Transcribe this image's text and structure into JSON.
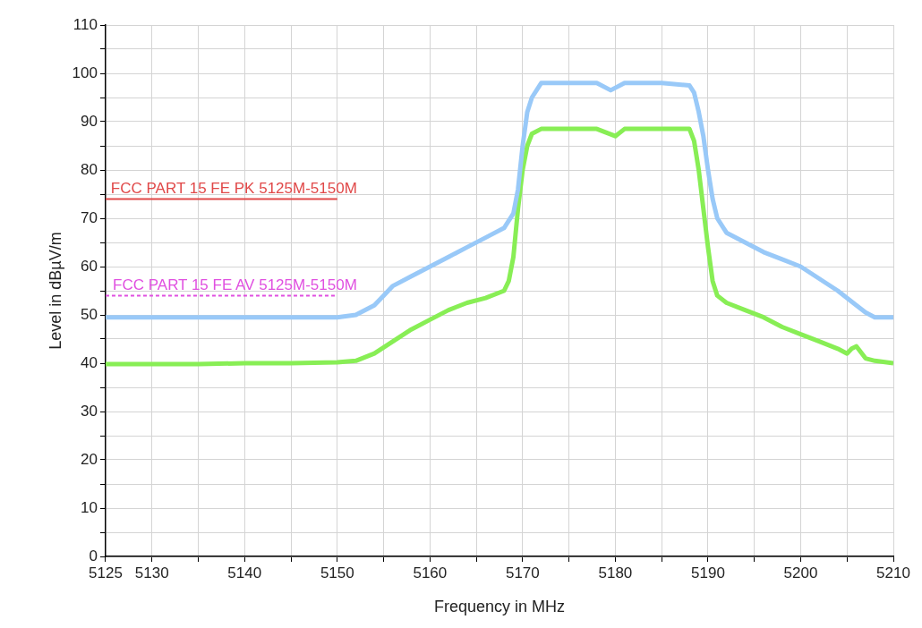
{
  "chart_data": {
    "type": "line",
    "xlabel": "Frequency in MHz",
    "ylabel": "Level in dBµV/m",
    "xlim": [
      5125,
      5210
    ],
    "xticks": [
      5125,
      5130,
      {
        "value": 5135,
        "label": null
      },
      5140,
      {
        "value": 5145,
        "label": null
      },
      5150,
      {
        "value": 5155,
        "label": null
      },
      5160,
      {
        "value": 5165,
        "label": null
      },
      5170,
      {
        "value": 5175,
        "label": null
      },
      5180,
      {
        "value": 5185,
        "label": null
      },
      5190,
      {
        "value": 5195,
        "label": null
      },
      5200,
      {
        "value": 5205,
        "label": null
      },
      5210
    ],
    "ylim": [
      0,
      110
    ],
    "yticks": [
      0,
      {
        "value": 5,
        "label": null
      },
      10,
      {
        "value": 15,
        "label": null
      },
      20,
      {
        "value": 25,
        "label": null
      },
      30,
      {
        "value": 35,
        "label": null
      },
      40,
      {
        "value": 45,
        "label": null
      },
      50,
      {
        "value": 55,
        "label": null
      },
      60,
      {
        "value": 65,
        "label": null
      },
      70,
      {
        "value": 75,
        "label": null
      },
      80,
      {
        "value": 85,
        "label": null
      },
      90,
      {
        "value": 95,
        "label": null
      },
      100,
      {
        "value": 105,
        "label": null
      },
      110
    ],
    "grid": true,
    "legend": false,
    "marker": "none",
    "series": [
      {
        "color": "#99c9f8",
        "x": [
          5125,
          5130,
          5135,
          5140,
          5145,
          5150,
          5152,
          5154,
          5155,
          5156,
          5158,
          5160,
          5162,
          5164,
          5166,
          5168,
          5169,
          5169.5,
          5170,
          5170.5,
          5171,
          5172,
          5175,
          5178,
          5179.5,
          5181,
          5185,
          5188,
          5188.5,
          5189,
          5189.5,
          5190,
          5190.5,
          5191,
          5192,
          5194,
          5196,
          5198,
          5200,
          5202,
          5204,
          5206,
          5207,
          5208,
          5210
        ],
        "values": [
          49.5,
          49.5,
          49.5,
          49.5,
          49.5,
          49.5,
          50,
          52,
          54,
          56,
          58,
          60,
          62,
          64,
          66,
          68,
          71,
          76,
          85,
          92,
          95,
          98,
          98,
          98,
          96.5,
          98,
          98,
          97.5,
          96,
          92,
          87,
          80,
          74,
          70,
          67,
          65,
          63,
          61.5,
          60,
          57.5,
          55,
          52,
          50.5,
          49.5,
          49.5
        ]
      },
      {
        "color": "#88ee55",
        "x": [
          5125,
          5130,
          5135,
          5140,
          5145,
          5150,
          5152,
          5154,
          5156,
          5158,
          5160,
          5162,
          5164,
          5166,
          5168,
          5168.5,
          5169,
          5169.5,
          5170,
          5170.5,
          5171,
          5172,
          5175,
          5178,
          5180,
          5181,
          5185,
          5188,
          5188.5,
          5189,
          5189.5,
          5190,
          5190.5,
          5191,
          5192,
          5194,
          5196,
          5198,
          5200,
          5202,
          5204,
          5205,
          5205.5,
          5206,
          5207,
          5208,
          5210
        ],
        "values": [
          39.8,
          39.8,
          39.8,
          40,
          40,
          40.2,
          40.5,
          42,
          44.5,
          47,
          49,
          51,
          52.5,
          53.5,
          55,
          57,
          62,
          72,
          80,
          85,
          87.5,
          88.5,
          88.5,
          88.5,
          87,
          88.5,
          88.5,
          88.5,
          86,
          80,
          72,
          64,
          57,
          54,
          52.5,
          51,
          49.5,
          47.5,
          46,
          44.5,
          43,
          42,
          43,
          43.5,
          41,
          40.5,
          40
        ]
      },
      {
        "name": "FCC PART 15 FE PK 5125M-5150M",
        "color": "#e04848",
        "x": [
          5125,
          5150
        ],
        "values": [
          74,
          74
        ]
      },
      {
        "name": "FCC PART 15 FE AV 5125M-5150M",
        "color": "#e050e0",
        "x": [
          5125,
          5150
        ],
        "values": [
          54,
          54
        ],
        "line_style": "dashed"
      }
    ]
  }
}
